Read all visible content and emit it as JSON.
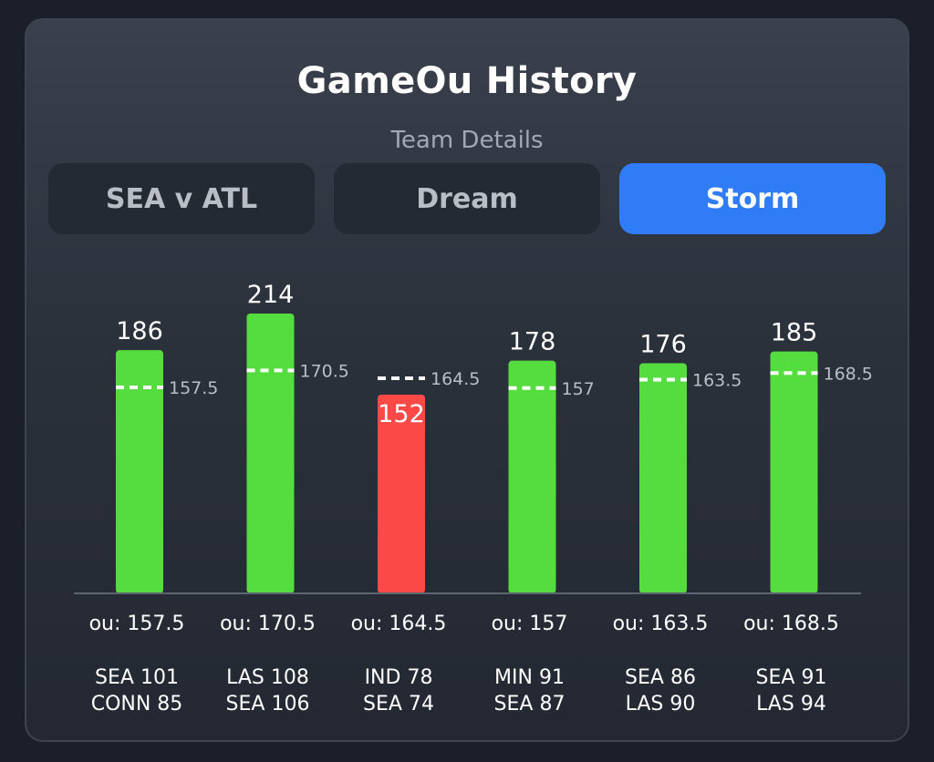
{
  "header": {
    "title": "GameOu History",
    "subtitle": "Team Details"
  },
  "tabs": [
    {
      "label": "SEA v ATL",
      "active": false
    },
    {
      "label": "Dream",
      "active": false
    },
    {
      "label": "Storm",
      "active": true
    }
  ],
  "colors": {
    "over": "#55dd3f",
    "under": "#fa4947",
    "active_tab": "#2f7cf6",
    "ou_line": "#ffffff"
  },
  "chart_data": {
    "type": "bar",
    "title": "",
    "xlabel": "",
    "ylabel": "",
    "ylim": [
      0,
      240
    ],
    "grid": false,
    "categories": [
      {
        "ou_text": "ou: 157.5",
        "score_lines": [
          "SEA 101",
          "CONN 85"
        ]
      },
      {
        "ou_text": "ou: 170.5",
        "score_lines": [
          "LAS 108",
          "SEA 106"
        ]
      },
      {
        "ou_text": "ou: 164.5",
        "score_lines": [
          "IND 78",
          "SEA 74"
        ]
      },
      {
        "ou_text": "ou: 157",
        "score_lines": [
          "MIN 91",
          "SEA 87"
        ]
      },
      {
        "ou_text": "ou: 163.5",
        "score_lines": [
          "SEA 86",
          "LAS 90"
        ]
      },
      {
        "ou_text": "ou: 168.5",
        "score_lines": [
          "SEA 91",
          "LAS 94"
        ]
      }
    ],
    "values": [
      186,
      214,
      152,
      178,
      176,
      185
    ],
    "ou_lines": [
      157.5,
      170.5,
      164.5,
      157,
      163.5,
      168.5
    ],
    "value_labels": [
      "186",
      "214",
      "152",
      "178",
      "176",
      "185"
    ],
    "ou_line_labels": [
      "157.5",
      "170.5",
      "164.5",
      "157",
      "163.5",
      "168.5"
    ],
    "result": [
      "over",
      "over",
      "under",
      "over",
      "over",
      "over"
    ]
  }
}
